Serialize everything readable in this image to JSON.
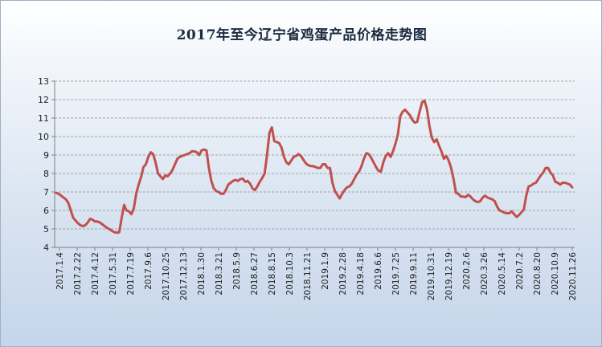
{
  "title": "2017年至今辽宁省鸡蛋产品价格走势图",
  "colors": {
    "line": "#c0504d",
    "grid": "#8e8e8e",
    "axis": "#7f7f7f",
    "text": "#1f1f1f"
  },
  "chart_data": {
    "type": "line",
    "title": "2017年至今辽宁省鸡蛋产品价格走势图",
    "xlabel": "",
    "ylabel": "",
    "ylim": [
      4,
      13
    ],
    "yticks": [
      4,
      5,
      6,
      7,
      8,
      9,
      10,
      11,
      12,
      13
    ],
    "grid": true,
    "legend": "none",
    "xtick_labels": [
      "2017.1.4",
      "2017.2.22",
      "2017.4.12",
      "2017.5.31",
      "2017.7.19",
      "2017.9.6",
      "2017.10.25",
      "2017.12.13",
      "2018.1.30",
      "2018.3.21",
      "2018.5.9",
      "2018.6.27",
      "2018.8.15",
      "2018.10.3",
      "2018.11.21",
      "2019.1.9",
      "2019.2.28",
      "2019.4.18",
      "2019.6.6",
      "2019.7.25",
      "2019.9.11",
      "2019.10.31",
      "2019.12.19",
      "2020.2.6",
      "2020.3.26",
      "2020.5.14",
      "2020.7.2",
      "2020.8.20",
      "2020.10.9",
      "2020.11.26"
    ],
    "series": [
      {
        "values": [
          6.95,
          6.9,
          6.8,
          6.7,
          6.6,
          6.4,
          6.0,
          5.6,
          5.45,
          5.3,
          5.2,
          5.15,
          5.2,
          5.35,
          5.55,
          5.5,
          5.4,
          5.4,
          5.35,
          5.25,
          5.15,
          5.05,
          4.98,
          4.9,
          4.82,
          4.8,
          4.82,
          5.6,
          6.3,
          6.0,
          5.95,
          5.8,
          6.1,
          6.9,
          7.4,
          7.8,
          8.35,
          8.5,
          8.9,
          9.15,
          9.05,
          8.6,
          8.0,
          7.85,
          7.7,
          7.9,
          7.85,
          8.0,
          8.2,
          8.5,
          8.8,
          8.9,
          8.95,
          9.0,
          9.05,
          9.1,
          9.2,
          9.2,
          9.15,
          9.0,
          9.25,
          9.3,
          9.25,
          8.3,
          7.6,
          7.2,
          7.05,
          7.0,
          6.9,
          6.9,
          7.1,
          7.4,
          7.5,
          7.6,
          7.65,
          7.6,
          7.7,
          7.72,
          7.55,
          7.6,
          7.45,
          7.2,
          7.1,
          7.3,
          7.55,
          7.75,
          8.0,
          9.0,
          10.2,
          10.5,
          9.75,
          9.7,
          9.65,
          9.4,
          8.9,
          8.6,
          8.5,
          8.7,
          8.9,
          8.95,
          9.05,
          8.95,
          8.75,
          8.55,
          8.45,
          8.4,
          8.4,
          8.35,
          8.3,
          8.3,
          8.5,
          8.5,
          8.3,
          8.3,
          7.5,
          7.05,
          6.85,
          6.65,
          6.9,
          7.1,
          7.25,
          7.3,
          7.45,
          7.7,
          7.95,
          8.1,
          8.4,
          8.8,
          9.1,
          9.05,
          8.85,
          8.6,
          8.35,
          8.15,
          8.1,
          8.6,
          8.95,
          9.1,
          8.9,
          9.2,
          9.6,
          10.1,
          11.1,
          11.35,
          11.45,
          11.3,
          11.15,
          10.9,
          10.75,
          10.8,
          11.35,
          11.85,
          11.95,
          11.5,
          10.6,
          9.95,
          9.7,
          9.85,
          9.5,
          9.2,
          8.8,
          8.95,
          8.7,
          8.3,
          7.7,
          6.95,
          6.9,
          6.75,
          6.75,
          6.72,
          6.85,
          6.75,
          6.6,
          6.5,
          6.45,
          6.5,
          6.7,
          6.8,
          6.7,
          6.65,
          6.6,
          6.5,
          6.2,
          6.0,
          5.95,
          5.88,
          5.85,
          5.85,
          5.95,
          5.8,
          5.65,
          5.75,
          5.9,
          6.05,
          6.8,
          7.3,
          7.35,
          7.45,
          7.5,
          7.7,
          7.9,
          8.05,
          8.3,
          8.3,
          8.05,
          7.9,
          7.55,
          7.5,
          7.4,
          7.5,
          7.5,
          7.45,
          7.4,
          7.25
        ]
      }
    ]
  }
}
